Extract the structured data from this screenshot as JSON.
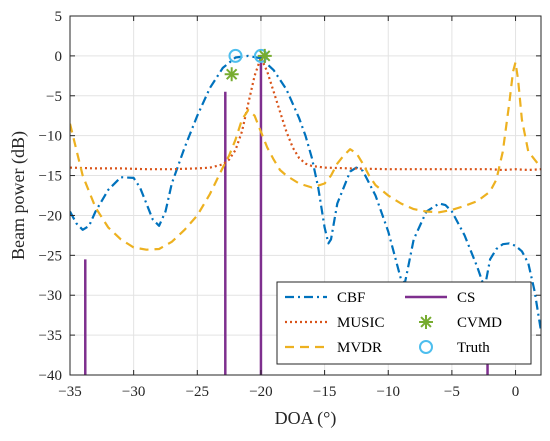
{
  "chart_data": {
    "type": "line",
    "title": "",
    "xlabel": "DOA (°)",
    "ylabel": "Beam power (dB)",
    "xlim": [
      -35,
      2
    ],
    "ylim": [
      -40,
      5
    ],
    "xticks": [
      -35,
      -30,
      -25,
      -20,
      -15,
      -10,
      -5,
      0
    ],
    "xtick_labels": [
      "−35",
      "−30",
      "−25",
      "−20",
      "−15",
      "−10",
      "−5",
      "0"
    ],
    "yticks": [
      5,
      0,
      -5,
      -10,
      -15,
      -20,
      -25,
      -30,
      -35,
      -40
    ],
    "ytick_labels": [
      "5",
      "0",
      "−5",
      "−10",
      "−15",
      "−20",
      "−25",
      "−30",
      "−35",
      "−40"
    ],
    "grid": true,
    "legend_position": "bottom-right",
    "series": [
      {
        "name": "CBF",
        "kind": "line",
        "style": "dash-dot",
        "color": "#0072BD",
        "x": [
          -35,
          -34.5,
          -34,
          -33.5,
          -33,
          -32,
          -31,
          -30,
          -29.5,
          -29,
          -28.5,
          -28,
          -27.5,
          -27,
          -26,
          -25,
          -24,
          -23,
          -22,
          -21,
          -20,
          -19,
          -18,
          -17,
          -16.5,
          -16,
          -15.5,
          -15,
          -14.7,
          -14.5,
          -14,
          -13,
          -12.5,
          -12,
          -11,
          -10,
          -9.5,
          -9,
          -8.7,
          -8.5,
          -8,
          -7,
          -6,
          -5.5,
          -5,
          -4,
          -3,
          -2.6,
          -2.3,
          -2,
          -1.5,
          -1,
          -0.5,
          0,
          0.5,
          1,
          1.5,
          2
        ],
        "y": [
          -19.5,
          -21,
          -21.8,
          -21.3,
          -19.5,
          -16.8,
          -15.2,
          -15.3,
          -16.5,
          -18.5,
          -20.5,
          -21.3,
          -19.5,
          -16,
          -11.5,
          -7.5,
          -4,
          -1.5,
          -0.2,
          0,
          -0.3,
          -1.8,
          -4.2,
          -7.8,
          -10,
          -12.8,
          -16.5,
          -21.5,
          -23.5,
          -23,
          -18.5,
          -14.5,
          -14,
          -14.4,
          -17.5,
          -22,
          -25,
          -28,
          -28.5,
          -27,
          -23,
          -19.5,
          -18.5,
          -18.7,
          -19.5,
          -22.5,
          -26.5,
          -28.3,
          -28,
          -25.5,
          -24.2,
          -23.6,
          -23.5,
          -23.8,
          -24.5,
          -26,
          -29.5,
          -34.5
        ]
      },
      {
        "name": "MUSIC",
        "kind": "line",
        "style": "dotted",
        "color": "#D95319",
        "x": [
          -35,
          -33,
          -31,
          -29,
          -27,
          -25,
          -24,
          -23,
          -22.5,
          -22,
          -21.5,
          -21,
          -20.5,
          -20,
          -19.5,
          -19,
          -18.5,
          -18,
          -17.5,
          -17,
          -16.5,
          -16,
          -15,
          -13,
          -10,
          -7,
          -4,
          -2,
          -1,
          0,
          1,
          2
        ],
        "y": [
          -14,
          -14.1,
          -14.1,
          -14.2,
          -14.2,
          -14.1,
          -14,
          -13.6,
          -13,
          -11.8,
          -9.5,
          -6,
          -2.5,
          -0.2,
          -2,
          -4.5,
          -7,
          -9.5,
          -11.5,
          -12.8,
          -13.5,
          -13.8,
          -14,
          -14.1,
          -14.2,
          -14.2,
          -14.2,
          -14.2,
          -14.3,
          -14.2,
          -14.3,
          -14.2
        ]
      },
      {
        "name": "MVDR",
        "kind": "line",
        "style": "dashed",
        "color": "#EDB120",
        "x": [
          -35,
          -34,
          -33,
          -32,
          -31,
          -30,
          -29,
          -28,
          -27,
          -26,
          -25,
          -24,
          -23,
          -22.5,
          -22,
          -21.5,
          -21,
          -20.5,
          -20,
          -19.5,
          -19,
          -18.5,
          -18,
          -17,
          -16,
          -15,
          -14.5,
          -14,
          -13.5,
          -13,
          -12.5,
          -12,
          -11.5,
          -11,
          -10,
          -9,
          -8,
          -7,
          -6,
          -5,
          -4,
          -3,
          -2,
          -1.5,
          -1,
          -0.5,
          -0.2,
          0,
          0.2,
          0.5,
          1,
          2
        ],
        "y": [
          -8.5,
          -15,
          -19,
          -21.5,
          -23,
          -24,
          -24.3,
          -24.2,
          -23.3,
          -21.8,
          -20,
          -17.3,
          -14,
          -12.5,
          -10.5,
          -8,
          -6.8,
          -7.5,
          -9.5,
          -11.5,
          -13,
          -14.3,
          -15,
          -16,
          -16.5,
          -16,
          -15,
          -13.5,
          -12.5,
          -11.7,
          -12.2,
          -13.5,
          -15,
          -16.2,
          -17.5,
          -18.5,
          -19.2,
          -19.5,
          -19.6,
          -19.3,
          -18.8,
          -18.2,
          -17,
          -15.5,
          -12,
          -6,
          -2,
          -0.8,
          -3,
          -8,
          -12,
          -14
        ]
      },
      {
        "name": "CS",
        "kind": "stem",
        "color": "#7E2F8E",
        "x": [
          -33.8,
          -22.8,
          -20,
          -2.2
        ],
        "y": [
          -25.5,
          -4.5,
          0,
          -38.5
        ]
      },
      {
        "name": "CVMD",
        "kind": "marker",
        "marker": "asterisk",
        "color": "#77AC30",
        "x": [
          -22.3,
          -19.7
        ],
        "y": [
          -2.3,
          0
        ]
      },
      {
        "name": "Truth",
        "kind": "marker",
        "marker": "circle",
        "color": "#4DBEEE",
        "x": [
          -22,
          -20
        ],
        "y": [
          0,
          0
        ]
      }
    ]
  }
}
